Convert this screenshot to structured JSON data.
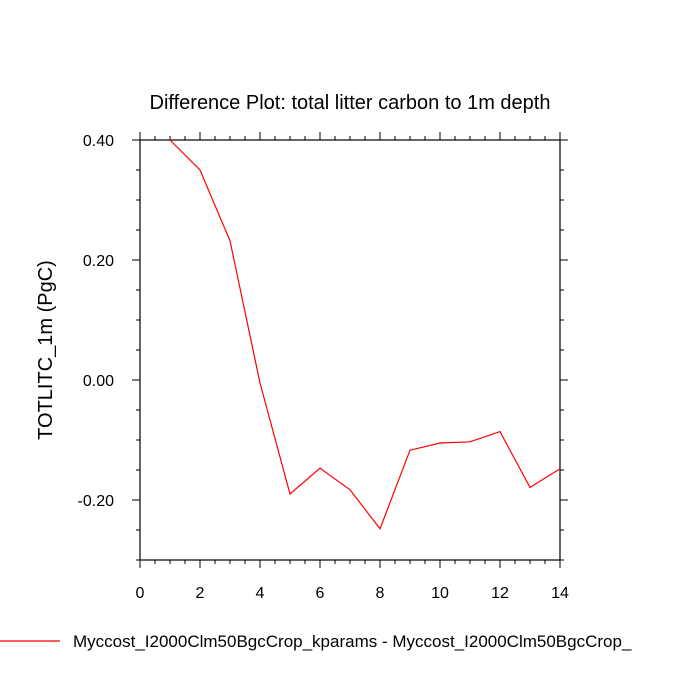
{
  "chart_data": {
    "type": "line",
    "title": "Difference Plot: total litter carbon to 1m depth",
    "xlabel": "",
    "ylabel": "TOTLITC_1m  (PgC)",
    "xlim": [
      0,
      14
    ],
    "ylim": [
      -0.3,
      0.4
    ],
    "x_ticks": [
      0,
      2,
      4,
      6,
      8,
      10,
      12,
      14
    ],
    "x_tick_labels": [
      "0",
      "2",
      "4",
      "6",
      "8",
      "10",
      "12",
      "14"
    ],
    "y_ticks": [
      -0.2,
      0.0,
      0.2,
      0.4
    ],
    "y_tick_labels": [
      "-0.20",
      "0.00",
      "0.20",
      "0.40"
    ],
    "grid": false,
    "legend_placement": "bottom",
    "series": [
      {
        "name": "Myccost_I2000Clm50BgcCrop_kparams - Myccost_I2000Clm50BgcCrop_",
        "color": "#ff0000",
        "x": [
          1,
          2,
          3,
          4,
          5,
          6,
          7,
          8,
          9,
          10,
          11,
          12,
          13,
          14
        ],
        "y": [
          0.4,
          0.35,
          0.232,
          -0.005,
          -0.19,
          -0.147,
          -0.183,
          -0.248,
          -0.117,
          -0.105,
          -0.103,
          -0.086,
          -0.179,
          -0.148
        ]
      }
    ]
  }
}
